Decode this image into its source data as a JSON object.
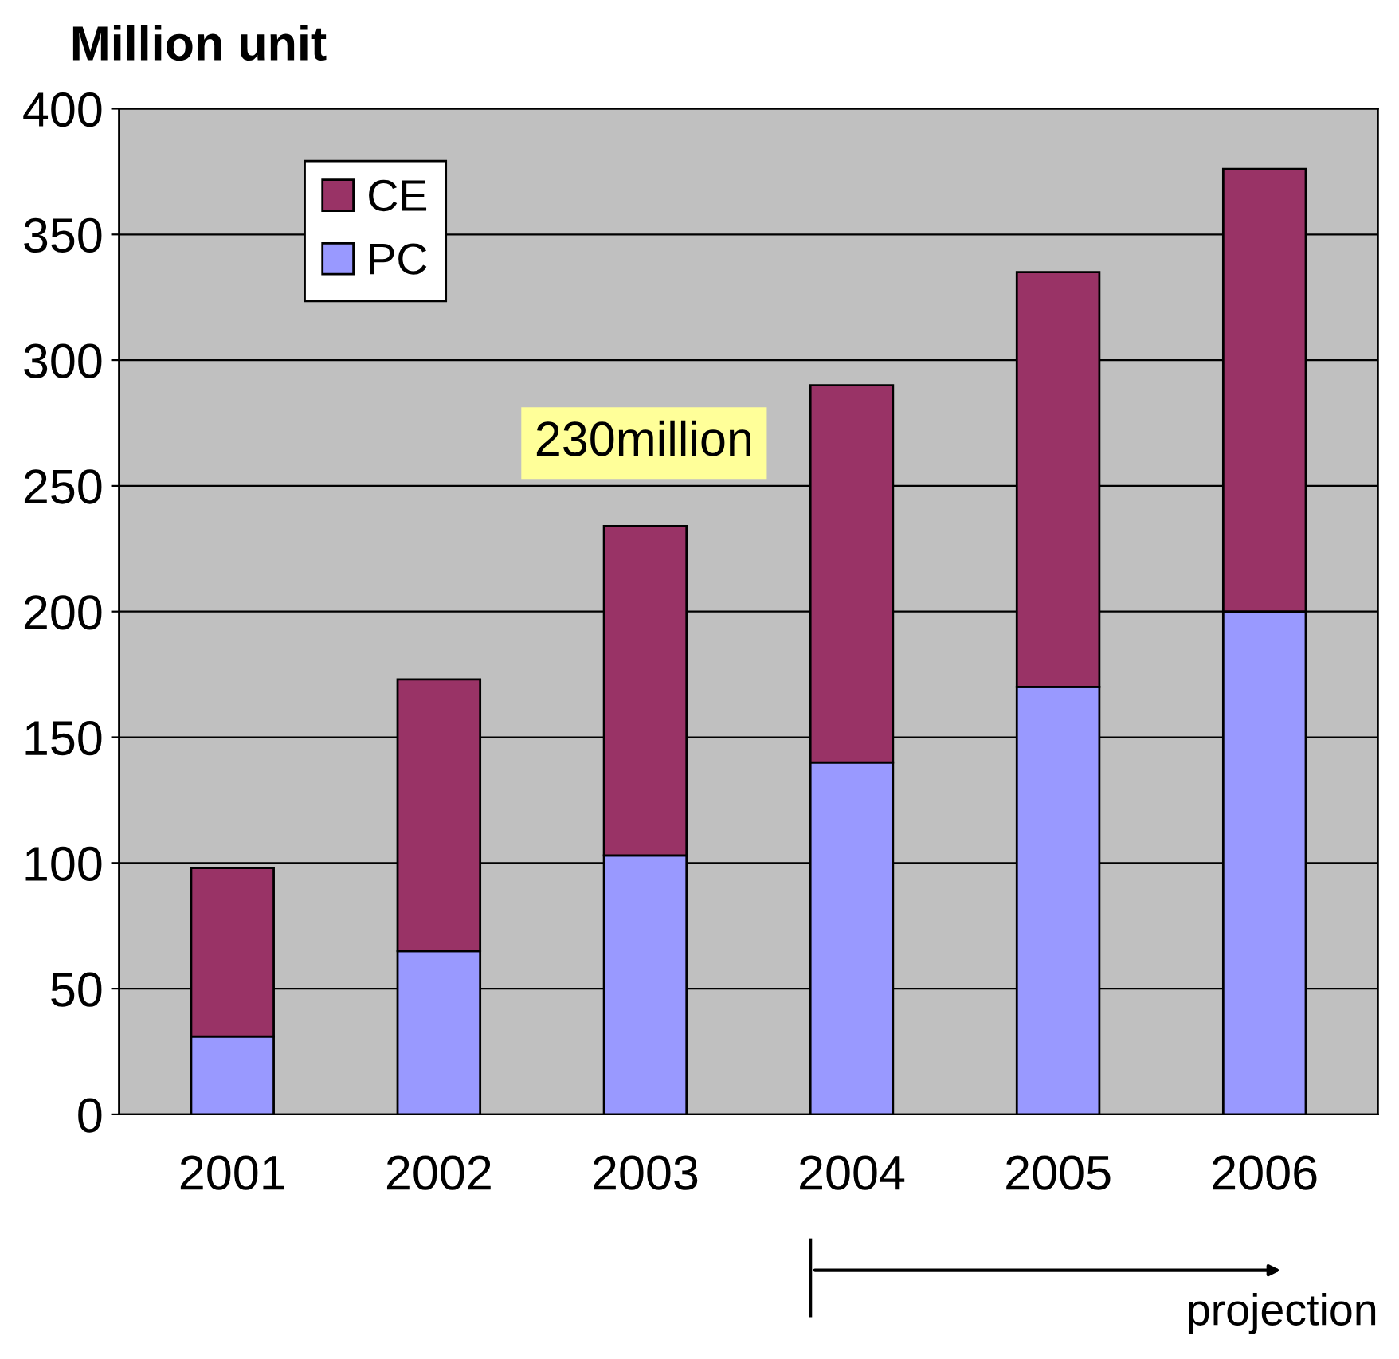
{
  "chart_data": {
    "type": "bar",
    "title": "Million unit",
    "stacked": true,
    "categories": [
      "2001",
      "2002",
      "2003",
      "2004",
      "2005",
      "2006"
    ],
    "series": [
      {
        "name": "PC",
        "color": "#9999ff",
        "values": [
          31,
          65,
          103,
          140,
          170,
          200
        ]
      },
      {
        "name": "CE",
        "color": "#993366",
        "values": [
          67,
          108,
          131,
          150,
          165,
          176
        ]
      }
    ],
    "ylim": [
      0,
      400
    ],
    "yticks": [
      0,
      50,
      100,
      150,
      200,
      250,
      300,
      350,
      400
    ],
    "grid": "y",
    "legend": "top left",
    "annotations": [
      "230million",
      "projection"
    ]
  }
}
